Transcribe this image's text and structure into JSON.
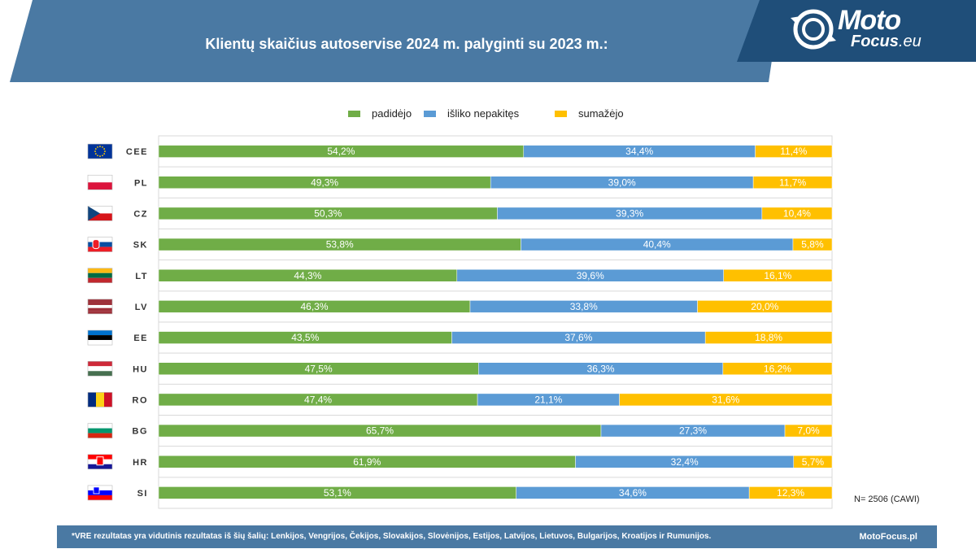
{
  "header": {
    "title": "Klientų skaičius autoservise 2024 m. palyginti su 2023 m.:"
  },
  "logo": {
    "line1": "Moto",
    "line2_bold": "Focus",
    "line2_suffix": ".eu",
    "icon": "motofocus-logo-icon"
  },
  "colors": {
    "increased": "#70ad47",
    "unchanged": "#5b9bd5",
    "decreased": "#ffc000",
    "header_band": "#4a79a3",
    "logo_band": "#1f4e79"
  },
  "chart_data": {
    "type": "bar",
    "orientation": "horizontal",
    "stacked": "percent",
    "title": "Klientų skaičius autoservise 2024 m. palyginti su 2023 m.:",
    "categories": [
      "CEE",
      "PL",
      "CZ",
      "SK",
      "LT",
      "LV",
      "EE",
      "HU",
      "RO",
      "BG",
      "HR",
      "SI"
    ],
    "series": [
      {
        "name": "padidėjo",
        "values": [
          54.2,
          49.3,
          50.3,
          53.8,
          44.3,
          46.3,
          43.5,
          47.5,
          47.4,
          65.7,
          61.9,
          53.1
        ]
      },
      {
        "name": "išliko nepakitęs",
        "values": [
          34.4,
          39.0,
          39.3,
          40.4,
          39.6,
          33.8,
          37.6,
          36.3,
          21.1,
          27.3,
          32.4,
          34.6
        ]
      },
      {
        "name": "sumažėjo",
        "values": [
          11.4,
          11.7,
          10.4,
          5.8,
          16.1,
          20.0,
          18.8,
          16.2,
          31.6,
          7.0,
          5.7,
          12.3
        ]
      }
    ],
    "labels": [
      [
        "54,2%",
        "34,4%",
        "11,4%"
      ],
      [
        "49,3%",
        "39,0%",
        "11,7%"
      ],
      [
        "50,3%",
        "39,3%",
        "10,4%"
      ],
      [
        "53,8%",
        "40,4%",
        "5,8%"
      ],
      [
        "44,3%",
        "39,6%",
        "16,1%"
      ],
      [
        "46,3%",
        "33,8%",
        "20,0%"
      ],
      [
        "43,5%",
        "37,6%",
        "18,8%"
      ],
      [
        "47,5%",
        "36,3%",
        "16,2%"
      ],
      [
        "47,4%",
        "21,1%",
        "31,6%"
      ],
      [
        "65,7%",
        "27,3%",
        "7,0%"
      ],
      [
        "61,9%",
        "32,4%",
        "5,7%"
      ],
      [
        "53,1%",
        "34,6%",
        "12,3%"
      ]
    ],
    "flags": [
      "eu-flag-icon",
      "poland-flag-icon",
      "czechia-flag-icon",
      "slovakia-flag-icon",
      "lithuania-flag-icon",
      "latvia-flag-icon",
      "estonia-flag-icon",
      "hungary-flag-icon",
      "romania-flag-icon",
      "bulgaria-flag-icon",
      "croatia-flag-icon",
      "slovenia-flag-icon"
    ],
    "xlim": [
      0,
      100
    ],
    "legend_position": "top",
    "grid": true
  },
  "note": "N= 2506 (CAWI)",
  "footer": {
    "text": "*VRE rezultatas yra vidutinis rezultatas iš šių šalių: Lenkijos, Vengrijos, Čekijos, Slovakijos, Slovėnijos, Estijos, Latvijos, Lietuvos, Bulgarijos, Kroatijos ir Rumunijos.",
    "site": "MotoFocus.pl"
  }
}
